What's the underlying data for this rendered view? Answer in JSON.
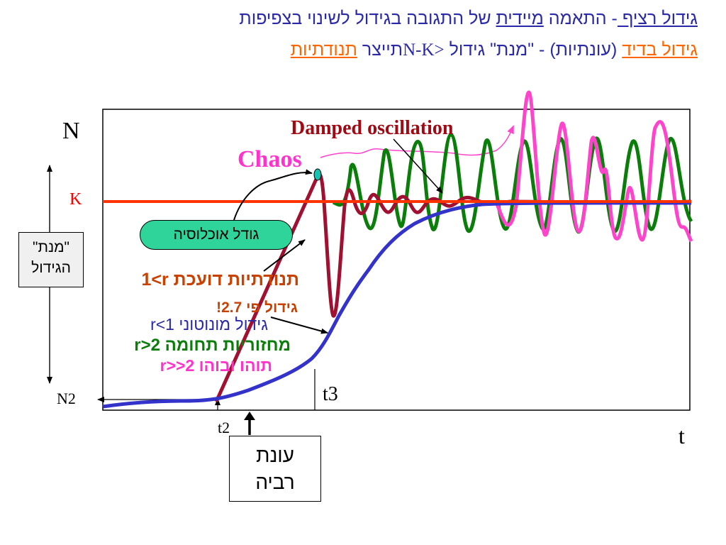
{
  "header": {
    "title_line1_a": "גידול רציף ",
    "title_line1_b": "- התאמה ",
    "title_line1_c": "מיידית",
    "title_line1_d": " של התגובה בגידול לשינוי בצפיפות",
    "title_line2_a": "גידול בדיד",
    "title_line2_b": " (עונתיות) - \"מנת\" גידול ",
    "title_line2_c": "N-K>",
    "title_line2_d": "תייצר ",
    "title_line2_e": "תנודתיות"
  },
  "axes": {
    "y_label": "N",
    "x_label": "t",
    "k_label": "K",
    "n2_label": "N2",
    "t2_label": "t2",
    "t3_label": "t3"
  },
  "annotations": {
    "damped": "Damped oscillation",
    "chaos": "Chaos",
    "logistic": "גודל אוכלוסיה",
    "r1_damped": "1<r תנודתיות דועכת",
    "growth_27": "גידול פי  2.7!",
    "r1_mono": "r<1 גידול מונוטוני",
    "r2_cycle": "r>2 מחזוריות תחומה",
    "r2_chaos": "r>>2  תוהו ובוהו"
  },
  "boxes": {
    "yield_line1": "\"מנת\"",
    "yield_line2": "הגידול",
    "season_line1": "עונת",
    "season_line2": "רביה"
  },
  "colors": {
    "title": "#2a2aa8",
    "underline_orange": "#ff6600",
    "k_line": "#ff3300",
    "monotonic": "#3333cc",
    "damped": "#a01030",
    "cycle": "#0a7d0a",
    "chaos": "#ff44cc",
    "pill": "#2fd49a"
  }
}
